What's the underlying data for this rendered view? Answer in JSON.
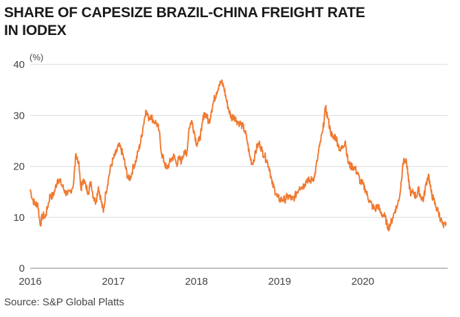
{
  "title_lines": [
    "SHARE OF CAPESIZE BRAZIL-CHINA FREIGHT RATE",
    "IN IODEX"
  ],
  "source": "Source: S&P Global Platts",
  "chart_data": {
    "type": "line",
    "title": "SHARE OF CAPESIZE BRAZIL-CHINA FREIGHT RATE IN IODEX",
    "ylabel": "(%)",
    "xlabel": "",
    "ylim": [
      0,
      40
    ],
    "yticks": [
      "0",
      "10",
      "20",
      "30",
      "40"
    ],
    "xlim": [
      2016.0,
      2021.02
    ],
    "xticks": [
      {
        "value": 2016,
        "label": "2016"
      },
      {
        "value": 2017,
        "label": "2017"
      },
      {
        "value": 2018,
        "label": "2018"
      },
      {
        "value": 2019,
        "label": "2019"
      },
      {
        "value": 2020,
        "label": "2020"
      }
    ],
    "grid": true,
    "line_color": "#f07a32",
    "series": [
      {
        "x": [
          2016.0,
          2016.03,
          2016.06,
          2016.09,
          2016.12,
          2016.15,
          2016.18,
          2016.21,
          2016.24,
          2016.27,
          2016.3,
          2016.33,
          2016.36,
          2016.39,
          2016.42,
          2016.45,
          2016.48,
          2016.52,
          2016.55,
          2016.58,
          2016.61,
          2016.64,
          2016.67,
          2016.7,
          2016.73,
          2016.76,
          2016.79,
          2016.82,
          2016.85,
          2016.88,
          2016.91,
          2016.94,
          2016.97,
          2017.0,
          2017.03,
          2017.06,
          2017.09,
          2017.12,
          2017.15,
          2017.18,
          2017.21,
          2017.24,
          2017.27,
          2017.3,
          2017.33,
          2017.36,
          2017.39,
          2017.42,
          2017.45,
          2017.48,
          2017.52,
          2017.55,
          2017.58,
          2017.61,
          2017.64,
          2017.67,
          2017.7,
          2017.73,
          2017.76,
          2017.79,
          2017.82,
          2017.85,
          2017.88,
          2017.91,
          2017.94,
          2017.97,
          2018.0,
          2018.03,
          2018.06,
          2018.09,
          2018.12,
          2018.15,
          2018.18,
          2018.21,
          2018.24,
          2018.27,
          2018.3,
          2018.33,
          2018.36,
          2018.39,
          2018.42,
          2018.45,
          2018.48,
          2018.52,
          2018.55,
          2018.58,
          2018.61,
          2018.64,
          2018.67,
          2018.7,
          2018.73,
          2018.76,
          2018.79,
          2018.82,
          2018.85,
          2018.88,
          2018.91,
          2018.94,
          2018.97,
          2019.0,
          2019.03,
          2019.06,
          2019.09,
          2019.12,
          2019.15,
          2019.18,
          2019.21,
          2019.24,
          2019.27,
          2019.3,
          2019.33,
          2019.36,
          2019.39,
          2019.42,
          2019.45,
          2019.48,
          2019.52,
          2019.55,
          2019.58,
          2019.61,
          2019.64,
          2019.67,
          2019.7,
          2019.73,
          2019.76,
          2019.79,
          2019.82,
          2019.85,
          2019.88,
          2019.91,
          2019.94,
          2019.97,
          2020.0,
          2020.03,
          2020.06,
          2020.09,
          2020.12,
          2020.15,
          2020.18,
          2020.21,
          2020.24,
          2020.27,
          2020.3,
          2020.33,
          2020.36,
          2020.39,
          2020.42,
          2020.45,
          2020.48,
          2020.52,
          2020.55,
          2020.58,
          2020.61,
          2020.64,
          2020.67,
          2020.7,
          2020.73,
          2020.76,
          2020.79,
          2020.82,
          2020.85,
          2020.88,
          2020.91,
          2020.94,
          2020.97,
          2021.0
        ],
        "y": [
          15.5,
          13.5,
          12.5,
          12.8,
          8.5,
          10.5,
          10.0,
          12.0,
          14.5,
          14.0,
          15.5,
          17.5,
          17.0,
          16.0,
          15.0,
          14.5,
          15.0,
          16.5,
          22.5,
          21.0,
          15.5,
          17.5,
          16.0,
          15.0,
          17.0,
          14.0,
          13.0,
          16.0,
          13.5,
          11.0,
          15.0,
          17.5,
          20.0,
          21.5,
          22.5,
          24.0,
          23.5,
          22.0,
          19.5,
          17.5,
          18.0,
          20.0,
          21.0,
          23.0,
          25.0,
          28.0,
          31.0,
          29.5,
          30.0,
          29.0,
          28.5,
          27.0,
          22.5,
          21.0,
          19.5,
          20.5,
          21.5,
          22.0,
          20.5,
          21.5,
          21.0,
          23.0,
          22.0,
          27.5,
          29.0,
          27.0,
          24.5,
          25.0,
          27.0,
          30.5,
          30.0,
          28.5,
          31.0,
          33.0,
          34.5,
          36.0,
          36.5,
          35.5,
          33.0,
          31.0,
          29.5,
          30.0,
          29.0,
          28.5,
          28.0,
          27.0,
          25.0,
          22.0,
          20.5,
          22.0,
          24.0,
          24.5,
          23.0,
          22.0,
          21.0,
          19.5,
          16.5,
          15.5,
          14.0,
          13.5,
          13.5,
          13.5,
          14.0,
          14.0,
          13.5,
          14.0,
          15.0,
          16.0,
          16.0,
          16.5,
          17.5,
          17.0,
          17.5,
          18.0,
          21.0,
          24.0,
          27.0,
          31.5,
          29.5,
          27.0,
          25.5,
          26.0,
          24.5,
          23.0,
          24.0,
          25.0,
          21.0,
          20.0,
          20.0,
          19.5,
          18.5,
          17.0,
          16.5,
          15.5,
          14.0,
          13.0,
          12.0,
          11.5,
          12.5,
          11.0,
          10.5,
          10.0,
          8.0,
          8.5,
          10.0,
          11.5,
          12.5,
          15.0,
          20.5,
          21.5,
          17.0,
          14.5,
          15.0,
          14.0,
          15.5,
          14.0,
          13.5,
          16.5,
          18.5,
          15.0,
          13.5,
          12.0,
          11.0,
          9.5,
          8.0,
          9.0
        ]
      }
    ]
  }
}
